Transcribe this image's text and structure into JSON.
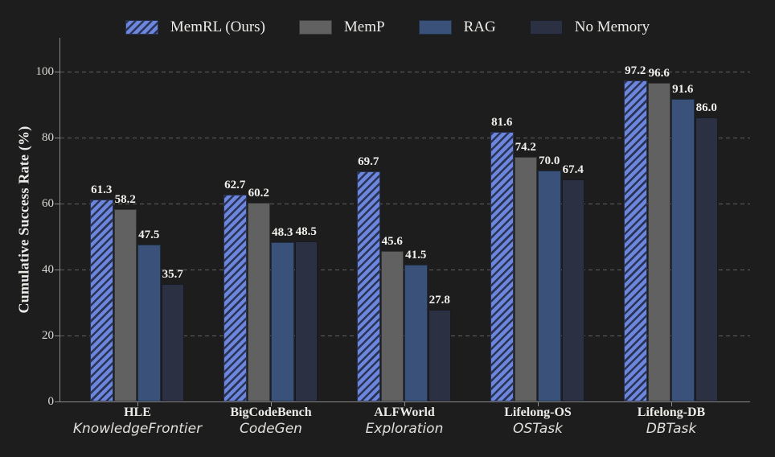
{
  "theme": {
    "background": "#1d1d1d",
    "text": "#eceae6",
    "grid": "#5f5f5f",
    "axis": "#8a8a8a"
  },
  "chart_data": {
    "type": "bar",
    "title": "",
    "xlabel": "",
    "ylabel": "Cumulative Success Rate (%)",
    "ylim": [
      0,
      110
    ],
    "yticks": [
      0,
      20,
      40,
      60,
      80,
      100
    ],
    "grid": "horizontal-dashed",
    "legend_position": "top-center",
    "categories": [
      {
        "name": "HLE",
        "subtitle": "KnowledgeFrontier"
      },
      {
        "name": "BigCodeBench",
        "subtitle": "CodeGen"
      },
      {
        "name": "ALFWorld",
        "subtitle": "Exploration"
      },
      {
        "name": "Lifelong-OS",
        "subtitle": "OSTask"
      },
      {
        "name": "Lifelong-DB",
        "subtitle": "DBTask"
      }
    ],
    "series": [
      {
        "name": "MemRL (Ours)",
        "color": "#6c86de",
        "hatch": "diagonal",
        "hatch_color": "#2a3452",
        "values": [
          61.3,
          62.7,
          69.7,
          81.6,
          97.2
        ]
      },
      {
        "name": "MemP",
        "color": "#616161",
        "values": [
          58.2,
          60.2,
          45.6,
          74.2,
          96.6
        ]
      },
      {
        "name": "RAG",
        "color": "#3a527a",
        "values": [
          47.5,
          48.3,
          41.5,
          70.0,
          91.6
        ]
      },
      {
        "name": "No Memory",
        "color": "#2b3142",
        "values": [
          35.7,
          48.5,
          27.8,
          67.4,
          86.0
        ]
      }
    ]
  }
}
